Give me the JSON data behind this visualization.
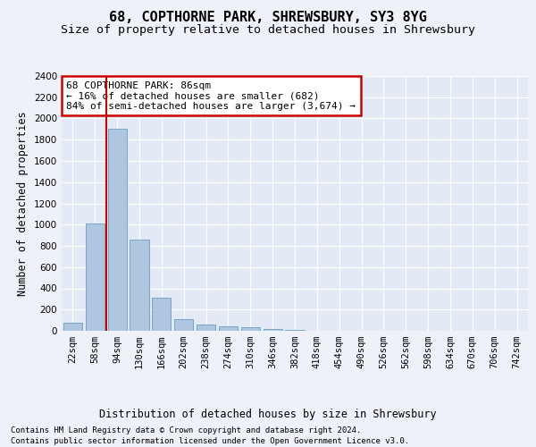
{
  "title": "68, COPTHORNE PARK, SHREWSBURY, SY3 8YG",
  "subtitle": "Size of property relative to detached houses in Shrewsbury",
  "xlabel": "Distribution of detached houses by size in Shrewsbury",
  "ylabel": "Number of detached properties",
  "bar_labels": [
    "22sqm",
    "58sqm",
    "94sqm",
    "130sqm",
    "166sqm",
    "202sqm",
    "238sqm",
    "274sqm",
    "310sqm",
    "346sqm",
    "382sqm",
    "418sqm",
    "454sqm",
    "490sqm",
    "526sqm",
    "562sqm",
    "598sqm",
    "634sqm",
    "670sqm",
    "706sqm",
    "742sqm"
  ],
  "bar_values": [
    80,
    1010,
    1900,
    860,
    310,
    110,
    55,
    40,
    30,
    15,
    10,
    0,
    0,
    0,
    0,
    0,
    0,
    0,
    0,
    0,
    0
  ],
  "bar_color": "#aec6e0",
  "bar_edge_color": "#6a9fc0",
  "ylim": [
    0,
    2400
  ],
  "yticks": [
    0,
    200,
    400,
    600,
    800,
    1000,
    1200,
    1400,
    1600,
    1800,
    2000,
    2200,
    2400
  ],
  "property_bin_index": 2,
  "annotation_title": "68 COPTHORNE PARK: 86sqm",
  "annotation_line1": "← 16% of detached houses are smaller (682)",
  "annotation_line2": "84% of semi-detached houses are larger (3,674) →",
  "annotation_box_color": "#ffffff",
  "annotation_box_edge": "#cc0000",
  "red_line_color": "#cc0000",
  "footer_line1": "Contains HM Land Registry data © Crown copyright and database right 2024.",
  "footer_line2": "Contains public sector information licensed under the Open Government Licence v3.0.",
  "background_color": "#eef2f8",
  "plot_background": "#e4eaf5",
  "grid_color": "#ffffff",
  "title_fontsize": 11,
  "subtitle_fontsize": 9.5,
  "axis_label_fontsize": 8.5,
  "tick_fontsize": 7.5,
  "footer_fontsize": 6.5,
  "annotation_fontsize": 8
}
